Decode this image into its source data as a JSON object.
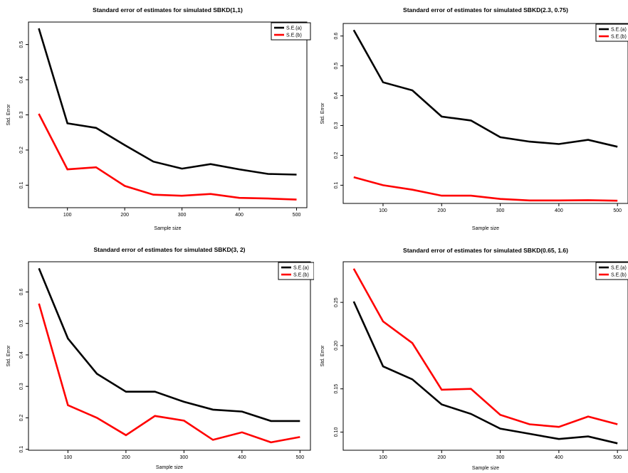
{
  "chart_data": [
    {
      "type": "line",
      "title": "Standard error of estimates for simulated SBKD(1,1)",
      "xlabel": "Sample size",
      "ylabel": "Std. Error",
      "x": [
        50,
        100,
        150,
        200,
        250,
        300,
        350,
        400,
        450,
        500
      ],
      "xticks": [
        100,
        200,
        300,
        400,
        500
      ],
      "yticks": [
        0.1,
        0.2,
        0.3,
        0.4,
        0.5
      ],
      "ylim": [
        0.036,
        0.564
      ],
      "xlim": [
        32,
        518
      ],
      "legend": "top-right",
      "series": [
        {
          "name": "S.E.(a)",
          "color": "#000000",
          "values": [
            0.546,
            0.276,
            0.263,
            0.214,
            0.167,
            0.147,
            0.16,
            0.145,
            0.132,
            0.13
          ]
        },
        {
          "name": "S.E.(b)",
          "color": "#ff0000",
          "values": [
            0.303,
            0.145,
            0.151,
            0.098,
            0.073,
            0.07,
            0.075,
            0.064,
            0.062,
            0.059
          ]
        }
      ]
    },
    {
      "type": "line",
      "title": "Standard error of estimates for simulated SBKD(2.3, 0.75)",
      "xlabel": "Sample size",
      "ylabel": "Std. Error",
      "x": [
        50,
        100,
        150,
        200,
        250,
        300,
        350,
        400,
        450,
        500
      ],
      "xticks": [
        100,
        200,
        300,
        400,
        500
      ],
      "yticks": [
        0.1,
        0.2,
        0.3,
        0.4,
        0.5,
        0.6
      ],
      "ylim": [
        0.039,
        0.642
      ],
      "xlim": [
        32,
        518
      ],
      "legend": "top-right",
      "series": [
        {
          "name": "S.E.(a)",
          "color": "#000000",
          "values": [
            0.62,
            0.445,
            0.418,
            0.33,
            0.317,
            0.261,
            0.246,
            0.238,
            0.252,
            0.229
          ]
        },
        {
          "name": "S.E.(b)",
          "color": "#ff0000",
          "values": [
            0.127,
            0.1,
            0.085,
            0.065,
            0.065,
            0.054,
            0.049,
            0.049,
            0.05,
            0.048
          ]
        }
      ]
    },
    {
      "type": "line",
      "title": "Standard error of estimates for simulated SBKD(3, 2)",
      "xlabel": "Sample size",
      "ylabel": "Std. Error",
      "x": [
        50,
        100,
        150,
        200,
        250,
        300,
        350,
        400,
        450,
        500
      ],
      "xticks": [
        100,
        200,
        300,
        400,
        500
      ],
      "yticks": [
        0.1,
        0.2,
        0.3,
        0.4,
        0.5,
        0.6
      ],
      "ylim": [
        0.097,
        0.696
      ],
      "xlim": [
        32,
        518
      ],
      "legend": "top-right",
      "series": [
        {
          "name": "S.E.(a)",
          "color": "#000000",
          "values": [
            0.675,
            0.452,
            0.34,
            0.283,
            0.283,
            0.251,
            0.226,
            0.22,
            0.19,
            0.19
          ]
        },
        {
          "name": "S.E.(b)",
          "color": "#ff0000",
          "values": [
            0.563,
            0.24,
            0.2,
            0.145,
            0.206,
            0.191,
            0.13,
            0.154,
            0.122,
            0.139
          ]
        }
      ]
    },
    {
      "type": "line",
      "title": "Standard error of estimates for simulated SBKD(0.65, 1.6)",
      "xlabel": "Sample size",
      "ylabel": "Std. Error",
      "x": [
        50,
        100,
        150,
        200,
        250,
        300,
        350,
        400,
        450,
        500
      ],
      "xticks": [
        100,
        200,
        300,
        400,
        500
      ],
      "yticks": [
        0.1,
        0.15,
        0.2,
        0.25
      ],
      "ytick_labels": [
        "0.10",
        "0.15",
        "0.20",
        "0.25"
      ],
      "ylim": [
        0.079,
        0.297
      ],
      "xlim": [
        32,
        518
      ],
      "legend": "top-right",
      "series": [
        {
          "name": "S.E.(a)",
          "color": "#000000",
          "values": [
            0.251,
            0.176,
            0.161,
            0.132,
            0.121,
            0.104,
            0.098,
            0.092,
            0.095,
            0.087
          ]
        },
        {
          "name": "S.E.(b)",
          "color": "#ff0000",
          "values": [
            0.289,
            0.228,
            0.203,
            0.149,
            0.15,
            0.12,
            0.109,
            0.106,
            0.118,
            0.109
          ]
        }
      ]
    }
  ]
}
